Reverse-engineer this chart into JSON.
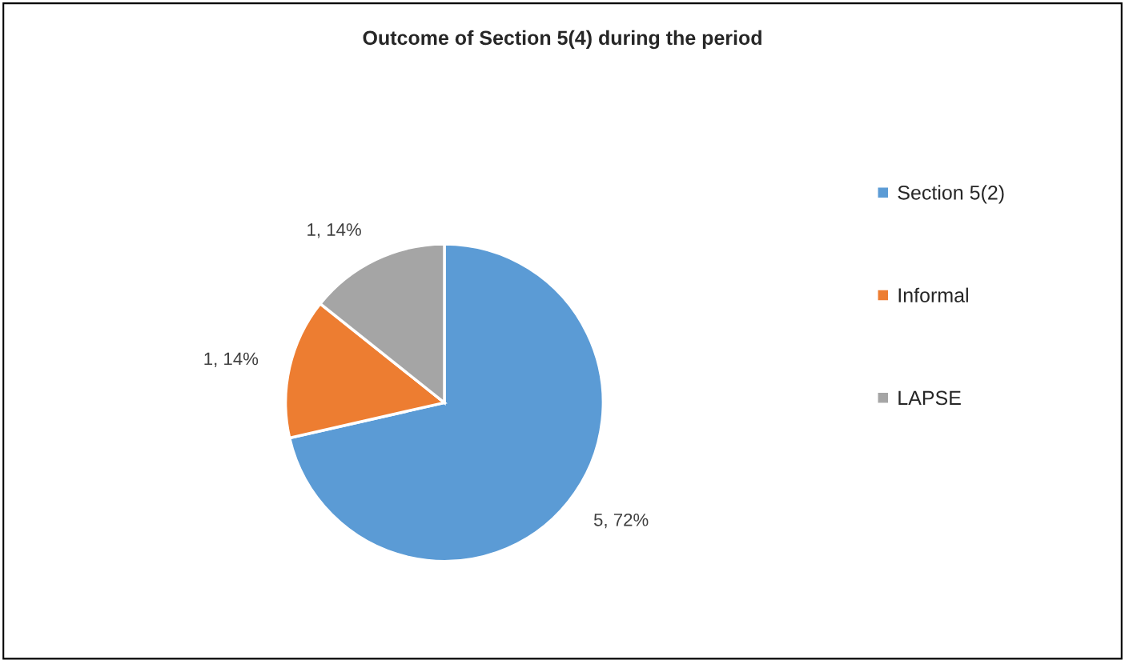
{
  "chart_data": {
    "type": "pie",
    "title": "Outcome of Section 5(4) during the period",
    "categories": [
      "Section 5(2)",
      "Informal",
      "LAPSE"
    ],
    "values": [
      5,
      1,
      1
    ],
    "colors": [
      "#5b9bd5",
      "#ed7d31",
      "#a5a5a5"
    ],
    "value_labels": [
      "5, 72%",
      "1, 14%",
      "1, 14%"
    ],
    "legend": "right"
  }
}
